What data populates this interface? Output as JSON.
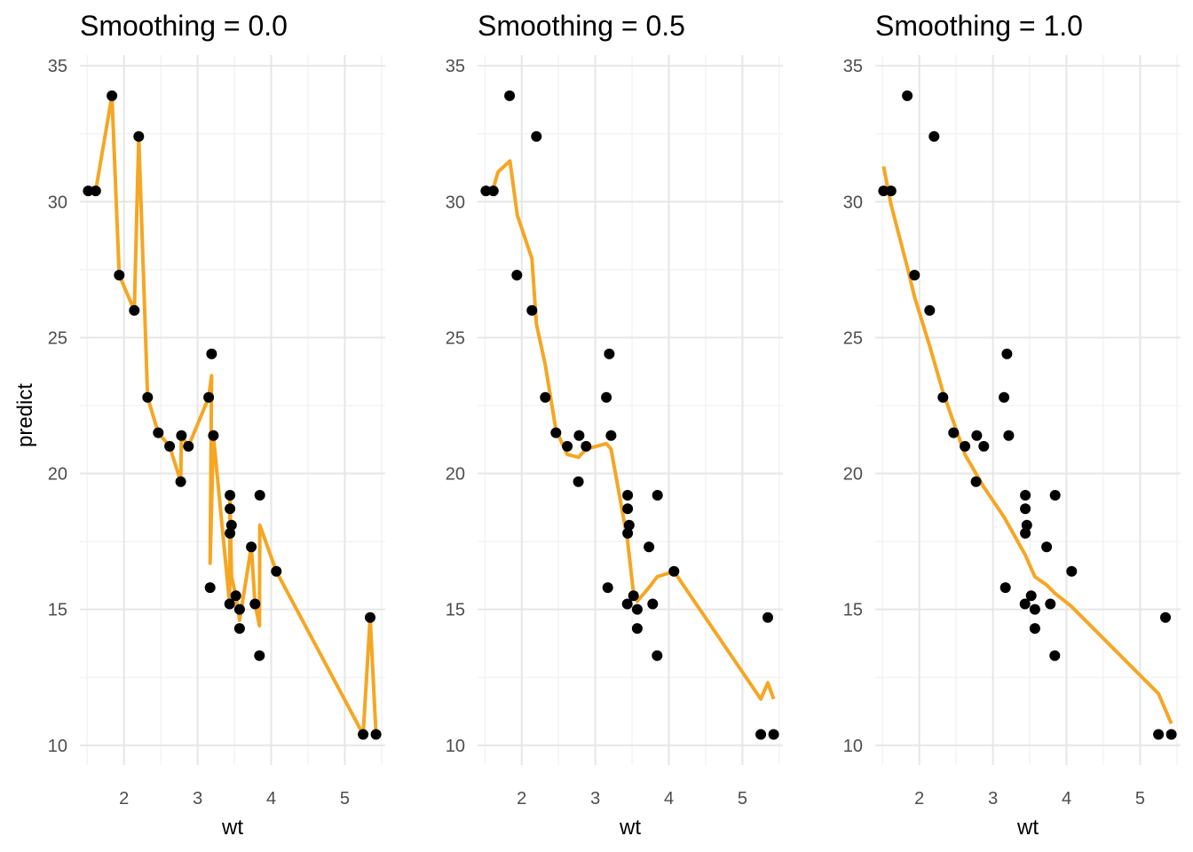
{
  "ylabel": "predict",
  "chart_data": [
    {
      "type": "line",
      "title": "Smoothing = 0.0",
      "xlabel": "wt",
      "ylabel": "predict",
      "xlim": [
        1.4,
        5.55
      ],
      "ylim": [
        9.6,
        35.3
      ],
      "xticks": [
        2,
        3,
        4,
        5
      ],
      "yticks": [
        10,
        15,
        20,
        25,
        30,
        35
      ],
      "grid": true,
      "colors": {
        "points": "#000000",
        "line": "#f5a623"
      },
      "points": [
        [
          1.513,
          30.4
        ],
        [
          1.615,
          30.4
        ],
        [
          1.835,
          33.9
        ],
        [
          1.935,
          27.3
        ],
        [
          2.14,
          26.0
        ],
        [
          2.2,
          32.4
        ],
        [
          2.32,
          22.8
        ],
        [
          2.465,
          21.5
        ],
        [
          2.62,
          21.0
        ],
        [
          2.77,
          19.7
        ],
        [
          2.78,
          21.4
        ],
        [
          2.875,
          21.0
        ],
        [
          3.15,
          22.8
        ],
        [
          3.17,
          15.8
        ],
        [
          3.19,
          24.4
        ],
        [
          3.215,
          21.4
        ],
        [
          3.435,
          15.2
        ],
        [
          3.44,
          18.7
        ],
        [
          3.44,
          17.8
        ],
        [
          3.44,
          19.2
        ],
        [
          3.46,
          18.1
        ],
        [
          3.52,
          15.5
        ],
        [
          3.57,
          15.0
        ],
        [
          3.57,
          14.3
        ],
        [
          3.73,
          17.3
        ],
        [
          3.78,
          15.2
        ],
        [
          3.84,
          13.3
        ],
        [
          3.845,
          19.2
        ],
        [
          4.07,
          16.4
        ],
        [
          5.25,
          10.4
        ],
        [
          5.345,
          14.7
        ],
        [
          5.424,
          10.4
        ]
      ],
      "line": [
        [
          1.513,
          30.4
        ],
        [
          1.615,
          30.4
        ],
        [
          1.835,
          33.9
        ],
        [
          1.935,
          27.3
        ],
        [
          2.14,
          26.0
        ],
        [
          2.2,
          32.4
        ],
        [
          2.32,
          22.8
        ],
        [
          2.465,
          21.5
        ],
        [
          2.62,
          21.0
        ],
        [
          2.77,
          19.7
        ],
        [
          2.78,
          21.4
        ],
        [
          2.875,
          21.0
        ],
        [
          3.15,
          22.8
        ],
        [
          3.19,
          23.6
        ],
        [
          3.17,
          16.7
        ],
        [
          3.215,
          21.4
        ],
        [
          3.435,
          15.2
        ],
        [
          3.44,
          18.7
        ],
        [
          3.44,
          17.8
        ],
        [
          3.44,
          19.2
        ],
        [
          3.46,
          16.2
        ],
        [
          3.52,
          15.5
        ],
        [
          3.57,
          14.6
        ],
        [
          3.73,
          17.3
        ],
        [
          3.78,
          15.2
        ],
        [
          3.84,
          14.4
        ],
        [
          3.845,
          18.1
        ],
        [
          4.07,
          16.4
        ],
        [
          5.25,
          10.4
        ],
        [
          5.345,
          14.7
        ],
        [
          5.424,
          10.4
        ]
      ]
    },
    {
      "type": "line",
      "title": "Smoothing = 0.5",
      "xlabel": "wt",
      "ylabel": "",
      "xlim": [
        1.4,
        5.55
      ],
      "ylim": [
        9.6,
        35.3
      ],
      "xticks": [
        2,
        3,
        4,
        5
      ],
      "yticks": [
        10,
        15,
        20,
        25,
        30,
        35
      ],
      "grid": true,
      "colors": {
        "points": "#000000",
        "line": "#f5a623"
      },
      "points": [
        [
          1.513,
          30.4
        ],
        [
          1.615,
          30.4
        ],
        [
          1.835,
          33.9
        ],
        [
          1.935,
          27.3
        ],
        [
          2.14,
          26.0
        ],
        [
          2.2,
          32.4
        ],
        [
          2.32,
          22.8
        ],
        [
          2.465,
          21.5
        ],
        [
          2.62,
          21.0
        ],
        [
          2.77,
          19.7
        ],
        [
          2.78,
          21.4
        ],
        [
          2.875,
          21.0
        ],
        [
          3.15,
          22.8
        ],
        [
          3.17,
          15.8
        ],
        [
          3.19,
          24.4
        ],
        [
          3.215,
          21.4
        ],
        [
          3.435,
          15.2
        ],
        [
          3.44,
          18.7
        ],
        [
          3.44,
          17.8
        ],
        [
          3.44,
          19.2
        ],
        [
          3.46,
          18.1
        ],
        [
          3.52,
          15.5
        ],
        [
          3.57,
          15.0
        ],
        [
          3.57,
          14.3
        ],
        [
          3.73,
          17.3
        ],
        [
          3.78,
          15.2
        ],
        [
          3.84,
          13.3
        ],
        [
          3.845,
          19.2
        ],
        [
          4.07,
          16.4
        ],
        [
          5.25,
          10.4
        ],
        [
          5.345,
          14.7
        ],
        [
          5.424,
          10.4
        ]
      ],
      "line": [
        [
          1.513,
          30.4
        ],
        [
          1.615,
          30.5
        ],
        [
          1.68,
          31.1
        ],
        [
          1.84,
          31.5
        ],
        [
          1.94,
          29.5
        ],
        [
          2.14,
          27.9
        ],
        [
          2.2,
          25.5
        ],
        [
          2.32,
          24.0
        ],
        [
          2.465,
          21.6
        ],
        [
          2.62,
          20.7
        ],
        [
          2.77,
          20.6
        ],
        [
          2.875,
          20.9
        ],
        [
          3.15,
          21.1
        ],
        [
          3.215,
          20.9
        ],
        [
          3.435,
          17.6
        ],
        [
          3.52,
          15.6
        ],
        [
          3.57,
          15.3
        ],
        [
          3.73,
          15.8
        ],
        [
          3.84,
          16.2
        ],
        [
          4.07,
          16.4
        ],
        [
          5.25,
          11.7
        ],
        [
          5.345,
          12.3
        ],
        [
          5.424,
          11.7
        ]
      ]
    },
    {
      "type": "line",
      "title": "Smoothing = 1.0",
      "xlabel": "wt",
      "ylabel": "",
      "xlim": [
        1.4,
        5.55
      ],
      "ylim": [
        9.6,
        35.3
      ],
      "xticks": [
        2,
        3,
        4,
        5
      ],
      "yticks": [
        10,
        15,
        20,
        25,
        30,
        35
      ],
      "grid": true,
      "colors": {
        "points": "#000000",
        "line": "#f5a623"
      },
      "points": [
        [
          1.513,
          30.4
        ],
        [
          1.615,
          30.4
        ],
        [
          1.835,
          33.9
        ],
        [
          1.935,
          27.3
        ],
        [
          2.14,
          26.0
        ],
        [
          2.2,
          32.4
        ],
        [
          2.32,
          22.8
        ],
        [
          2.465,
          21.5
        ],
        [
          2.62,
          21.0
        ],
        [
          2.77,
          19.7
        ],
        [
          2.78,
          21.4
        ],
        [
          2.875,
          21.0
        ],
        [
          3.15,
          22.8
        ],
        [
          3.17,
          15.8
        ],
        [
          3.19,
          24.4
        ],
        [
          3.215,
          21.4
        ],
        [
          3.435,
          15.2
        ],
        [
          3.44,
          18.7
        ],
        [
          3.44,
          17.8
        ],
        [
          3.44,
          19.2
        ],
        [
          3.46,
          18.1
        ],
        [
          3.52,
          15.5
        ],
        [
          3.57,
          15.0
        ],
        [
          3.57,
          14.3
        ],
        [
          3.73,
          17.3
        ],
        [
          3.78,
          15.2
        ],
        [
          3.84,
          13.3
        ],
        [
          3.845,
          19.2
        ],
        [
          4.07,
          16.4
        ],
        [
          5.25,
          10.4
        ],
        [
          5.345,
          14.7
        ],
        [
          5.424,
          10.4
        ]
      ],
      "line": [
        [
          1.513,
          31.3
        ],
        [
          1.615,
          29.9
        ],
        [
          1.835,
          27.6
        ],
        [
          1.935,
          26.5
        ],
        [
          2.14,
          24.7
        ],
        [
          2.32,
          23.0
        ],
        [
          2.62,
          20.7
        ],
        [
          2.875,
          19.5
        ],
        [
          3.15,
          18.4
        ],
        [
          3.44,
          17.0
        ],
        [
          3.57,
          16.2
        ],
        [
          3.73,
          15.9
        ],
        [
          3.84,
          15.6
        ],
        [
          4.07,
          15.1
        ],
        [
          5.25,
          11.9
        ],
        [
          5.424,
          10.8
        ]
      ]
    }
  ]
}
